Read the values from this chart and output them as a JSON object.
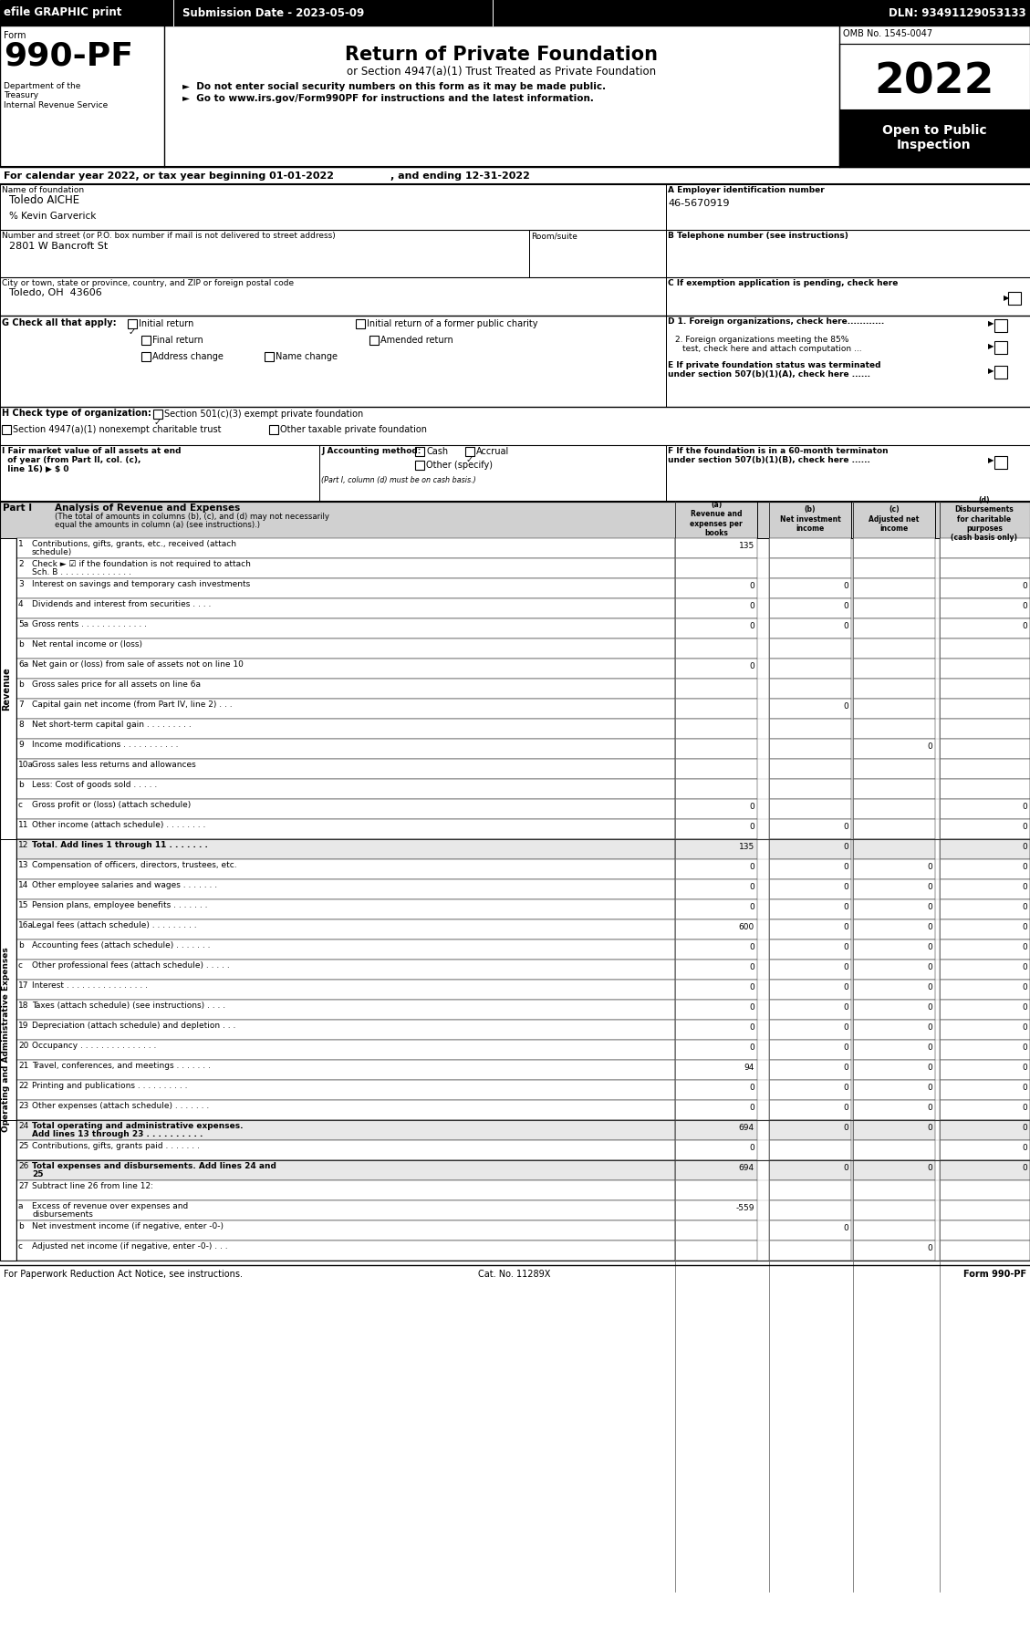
{
  "header_bar": {
    "efile_text": "efile GRAPHIC print",
    "submission_text": "Submission Date - 2023-05-09",
    "dln_text": "DLN: 93491129053133",
    "bg_color": "#000000",
    "text_color": "#ffffff"
  },
  "form_title": {
    "form_label": "Form",
    "form_number": "990-PF",
    "title": "Return of Private Foundation",
    "subtitle": "or Section 4947(a)(1) Trust Treated as Private Foundation",
    "bullet1": "►  Do not enter social security numbers on this form as it may be made public.",
    "bullet2": "►  Go to www.irs.gov/Form990PF for instructions and the latest information.",
    "dept": "Department of the\nTreasury\nInternal Revenue Service",
    "omb": "OMB No. 1545-0047",
    "year": "2022",
    "year_label": "Open to Public\nInspection",
    "year_bg": "#000000",
    "year_label_bg": "#000000"
  },
  "calendar_line": "For calendar year 2022, or tax year beginning 01-01-2022                , and ending 12-31-2022",
  "name_foundation": "Toledo AICHE",
  "care_of": "% Kevin Garverick",
  "address": "2801 W Bancroft St",
  "address_label": "Number and street (or P.O. box number if mail is not delivered to street address)",
  "room_suite_label": "Room/suite",
  "city_label": "City or town, state or province, country, and ZIP or foreign postal code",
  "city": "Toledo, OH  43606",
  "ein_label": "A Employer identification number",
  "ein": "46-5670919",
  "phone_label": "B Telephone number (see instructions)",
  "exempt_label": "C If exemption application is pending, check here",
  "section_g_label": "G Check all that apply:",
  "checkboxes_g": {
    "initial_return": true,
    "initial_former": false,
    "final_return": false,
    "amended_return": false,
    "address_change": false,
    "name_change": false
  },
  "section_d_label": "D 1. Foreign organizations, check here............",
  "section_d2_label": "2. Foreign organizations meeting the 85% test, check here and attach computation ...",
  "section_e_label": "E If private foundation status was terminated under section 507(b)(1)(A), check here ......",
  "section_h_label": "H Check type of organization:",
  "section_h_501": "Section 501(c)(3) exempt private foundation",
  "section_h_501_checked": true,
  "section_h_4947": "Section 4947(a)(1) nonexempt charitable trust",
  "section_h_other": "Other taxable private foundation",
  "section_i_label": "I Fair market value of all assets at end\n  of year (from Part II, col. (c),\n  line 16) ► $ 0",
  "section_j_label": "J Accounting method:",
  "section_j_cash": false,
  "section_j_accrual": true,
  "section_j_other": "Other (specify)",
  "section_j_note": "(Part I, column (d) must be on cash basis.)",
  "section_f_label": "F If the foundation is in a 60-month termination under section 507(b)(1)(B), check here ......",
  "part1_title": "Part I",
  "part1_subtitle": "Analysis of Revenue and Expenses",
  "part1_note": "(The total of amounts in columns (b), (c), and (d) may not necessarily equal the amounts in column (a) (see instructions).)",
  "col_headers": [
    "(a)\nRevenue and\nexpenses per\nbooks",
    "(b)\nNet investment\nincome",
    "(c)\nAdjusted net\nincome",
    "(d)\nDisbursements\nfor charitable\npurposes\n(cash basis only)"
  ],
  "rows": [
    {
      "num": "1",
      "label": "Contributions, gifts, grants, etc., received (attach\nschedule)",
      "a": "135",
      "b": "",
      "c": "",
      "d": ""
    },
    {
      "num": "2",
      "label": "Check ► ☑ if the foundation is not required to attach\nSch. B . . . . . . . . . . . . . .",
      "a": "",
      "b": "",
      "c": "",
      "d": ""
    },
    {
      "num": "3",
      "label": "Interest on savings and temporary cash investments",
      "a": "0",
      "b": "0",
      "c": "",
      "d": "0"
    },
    {
      "num": "4",
      "label": "Dividends and interest from securities . . . .",
      "a": "0",
      "b": "0",
      "c": "",
      "d": "0"
    },
    {
      "num": "5a",
      "label": "Gross rents . . . . . . . . . . . . .",
      "a": "0",
      "b": "0",
      "c": "",
      "d": "0"
    },
    {
      "num": "b",
      "label": "Net rental income or (loss)",
      "a": "",
      "b": "",
      "c": "",
      "d": ""
    },
    {
      "num": "6a",
      "label": "Net gain or (loss) from sale of assets not on line 10",
      "a": "0",
      "b": "",
      "c": "",
      "d": ""
    },
    {
      "num": "b",
      "label": "Gross sales price for all assets on line 6a",
      "a": "",
      "b": "",
      "c": "",
      "d": ""
    },
    {
      "num": "7",
      "label": "Capital gain net income (from Part IV, line 2) . . .",
      "a": "",
      "b": "0",
      "c": "",
      "d": ""
    },
    {
      "num": "8",
      "label": "Net short-term capital gain . . . . . . . . .",
      "a": "",
      "b": "",
      "c": "",
      "d": ""
    },
    {
      "num": "9",
      "label": "Income modifications . . . . . . . . . . .",
      "a": "",
      "b": "",
      "c": "0",
      "d": ""
    },
    {
      "num": "10a",
      "label": "Gross sales less returns and allowances",
      "a": "",
      "b": "",
      "c": "",
      "d": ""
    },
    {
      "num": "b",
      "label": "Less: Cost of goods sold . . . . .",
      "a": "",
      "b": "",
      "c": "",
      "d": ""
    },
    {
      "num": "c",
      "label": "Gross profit or (loss) (attach schedule)",
      "a": "0",
      "b": "",
      "c": "",
      "d": "0"
    },
    {
      "num": "11",
      "label": "Other income (attach schedule) . . . . . . . .",
      "a": "0",
      "b": "0",
      "c": "",
      "d": "0"
    },
    {
      "num": "12",
      "label": "Total. Add lines 1 through 11 . . . . . . .",
      "a": "135",
      "b": "0",
      "c": "",
      "d": "0",
      "bold": true
    },
    {
      "num": "13",
      "label": "Compensation of officers, directors, trustees, etc.",
      "a": "0",
      "b": "0",
      "c": "0",
      "d": "0"
    },
    {
      "num": "14",
      "label": "Other employee salaries and wages . . . . . . .",
      "a": "0",
      "b": "0",
      "c": "0",
      "d": "0"
    },
    {
      "num": "15",
      "label": "Pension plans, employee benefits . . . . . . .",
      "a": "0",
      "b": "0",
      "c": "0",
      "d": "0"
    },
    {
      "num": "16a",
      "label": "Legal fees (attach schedule) . . . . . . . . .",
      "a": "600",
      "b": "0",
      "c": "0",
      "d": "0"
    },
    {
      "num": "b",
      "label": "Accounting fees (attach schedule) . . . . . . .",
      "a": "0",
      "b": "0",
      "c": "0",
      "d": "0"
    },
    {
      "num": "c",
      "label": "Other professional fees (attach schedule) . . . . .",
      "a": "0",
      "b": "0",
      "c": "0",
      "d": "0"
    },
    {
      "num": "17",
      "label": "Interest . . . . . . . . . . . . . . . .",
      "a": "0",
      "b": "0",
      "c": "0",
      "d": "0"
    },
    {
      "num": "18",
      "label": "Taxes (attach schedule) (see instructions) . . . .",
      "a": "0",
      "b": "0",
      "c": "0",
      "d": "0"
    },
    {
      "num": "19",
      "label": "Depreciation (attach schedule) and depletion . . .",
      "a": "0",
      "b": "0",
      "c": "0",
      "d": "0"
    },
    {
      "num": "20",
      "label": "Occupancy . . . . . . . . . . . . . . .",
      "a": "0",
      "b": "0",
      "c": "0",
      "d": "0"
    },
    {
      "num": "21",
      "label": "Travel, conferences, and meetings . . . . . . .",
      "a": "94",
      "b": "0",
      "c": "0",
      "d": "0"
    },
    {
      "num": "22",
      "label": "Printing and publications . . . . . . . . . .",
      "a": "0",
      "b": "0",
      "c": "0",
      "d": "0"
    },
    {
      "num": "23",
      "label": "Other expenses (attach schedule) . . . . . . .",
      "a": "0",
      "b": "0",
      "c": "0",
      "d": "0"
    },
    {
      "num": "24",
      "label": "Total operating and administrative expenses.\nAdd lines 13 through 23 . . . . . . . . . .",
      "a": "694",
      "b": "0",
      "c": "0",
      "d": "0",
      "bold": true
    },
    {
      "num": "25",
      "label": "Contributions, gifts, grants paid . . . . . . .",
      "a": "0",
      "b": "",
      "c": "",
      "d": "0"
    },
    {
      "num": "26",
      "label": "Total expenses and disbursements. Add lines 24 and\n25",
      "a": "694",
      "b": "0",
      "c": "0",
      "d": "0",
      "bold": true
    },
    {
      "num": "27",
      "label": "Subtract line 26 from line 12:",
      "a": "",
      "b": "",
      "c": "",
      "d": "",
      "bold": true,
      "header": true
    },
    {
      "num": "a",
      "label": "Excess of revenue over expenses and\ndisbursements",
      "a": "-559",
      "b": "",
      "c": "",
      "d": ""
    },
    {
      "num": "b",
      "label": "Net investment income (if negative, enter -0-)",
      "a": "",
      "b": "0",
      "c": "",
      "d": ""
    },
    {
      "num": "c",
      "label": "Adjusted net income (if negative, enter -0-) . . .",
      "a": "",
      "b": "",
      "c": "0",
      "d": ""
    }
  ],
  "side_label_revenue": "Revenue",
  "side_label_expenses": "Operating and Administrative Expenses",
  "footer_left": "For Paperwork Reduction Act Notice, see instructions.",
  "footer_center": "Cat. No. 11289X",
  "footer_right": "Form 990-PF"
}
